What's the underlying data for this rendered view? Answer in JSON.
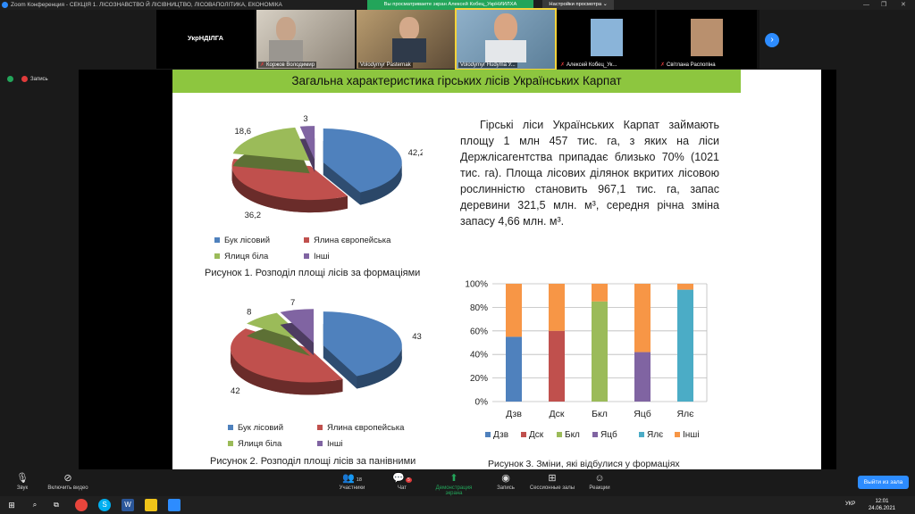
{
  "window": {
    "title": "Zoom Конференция - СЕКЦІЯ 1. ЛІСОЗНАВСТВО Й ЛІСІВНИЦТВО, ЛІСОВАПОЛІТИКА, ЕКОНОМІКА",
    "share_banner": "Вы просматриваете экран Алексей Кобец_УкрНИИЛХА",
    "view_options": "Настройки просмотра ⌄",
    "controls": [
      "—",
      "❐",
      "✕"
    ]
  },
  "gallery": {
    "first_tile": "УкрНДІЛГА",
    "participants": [
      {
        "name": "Коржов Володимир"
      },
      {
        "name": "Volodymyr Pasternak"
      },
      {
        "name": "Volodymyr Hudyma У..."
      },
      {
        "name": "Алексей Кобец_Ук..."
      },
      {
        "name": "Світлана Распопіна"
      }
    ],
    "next_icon": "›"
  },
  "recording": {
    "label": "Запись"
  },
  "slide": {
    "title": "Загальна характеристика гірських лісів Українських Карпат",
    "paragraph": "Гірські ліси Українських Карпат займають площу 1 млн 457 тис. га, з яких на ліси Держлісагентства припадає близько 70% (1021 тис. га). Площа лісових ділянок вкритих лісовою рослинністю становить 967,1 тис. га, запас деревини 321,5 млн. м³, середня річна зміна запасу 4,66 млн. м³.",
    "legend_pie": [
      "Бук лісовий",
      "Ялина європейська",
      "Ялиця біла",
      "Інші"
    ],
    "caption1": "Рисунок 1. Розподіл площі лісів за формаціями",
    "caption2": "Рисунок 2. Розподіл площі лісів за панівними",
    "caption3": "Рисунок 3. Зміни, які відбулися у формаціях"
  },
  "chart_data": [
    {
      "type": "pie",
      "title": "",
      "categories": [
        "Бук лісовий",
        "Ялина європейська",
        "Ялиця біла",
        "Інші"
      ],
      "values": [
        42.2,
        36.2,
        18.6,
        3
      ],
      "labels": [
        "42,2",
        "36,2",
        "18,6",
        "3"
      ],
      "colors": [
        "#4f81bd",
        "#c0504d",
        "#9bbb59",
        "#8064a2"
      ],
      "exploded": true,
      "three_d": true
    },
    {
      "type": "pie",
      "title": "",
      "categories": [
        "Бук лісовий",
        "Ялина європейська",
        "Ялиця біла",
        "Інші"
      ],
      "values": [
        43,
        42,
        8,
        7
      ],
      "labels": [
        "43",
        "42",
        "8",
        "7"
      ],
      "colors": [
        "#4f81bd",
        "#c0504d",
        "#9bbb59",
        "#8064a2"
      ],
      "exploded": true,
      "three_d": true
    },
    {
      "type": "bar",
      "stacked": "percent",
      "categories": [
        "Дзв",
        "Дск",
        "Бкл",
        "Яцб",
        "Ялє"
      ],
      "ylim": [
        0,
        100
      ],
      "yticks": [
        "0%",
        "20%",
        "40%",
        "60%",
        "80%",
        "100%"
      ],
      "grid": true,
      "legend_position": "bottom",
      "legend": [
        "Дзв",
        "Дск",
        "Бкл",
        "Яцб",
        "Ялє",
        "Інші"
      ],
      "legend_colors": [
        "#4f81bd",
        "#c0504d",
        "#9bbb59",
        "#8064a2",
        "#4bacc6",
        "#f79646"
      ],
      "segments": [
        {
          "category": "Дзв",
          "own": 55,
          "own_color": "#4f81bd",
          "other": 45
        },
        {
          "category": "Дск",
          "own": 60,
          "own_color": "#c0504d",
          "other": 40
        },
        {
          "category": "Бкл",
          "own": 85,
          "own_color": "#9bbb59",
          "other": 15
        },
        {
          "category": "Яцб",
          "own": 42,
          "own_color": "#8064a2",
          "other": 58
        },
        {
          "category": "Ялє",
          "own": 95,
          "own_color": "#4bacc6",
          "other": 5
        }
      ],
      "other_color": "#f79646"
    }
  ],
  "toolbar": {
    "sound": "Звук",
    "video": "Включить видео",
    "participants": "Участники",
    "participants_count": "18",
    "chat": "Чат",
    "chat_badge": "5",
    "share": "Демонстрация экрана",
    "record": "Запись",
    "rooms": "Сессионные залы",
    "reactions": "Реакции",
    "leave": "Выйти из зала"
  },
  "taskbar": {
    "lang": "УКР",
    "time": "12:01",
    "date": "24.06.2021"
  }
}
